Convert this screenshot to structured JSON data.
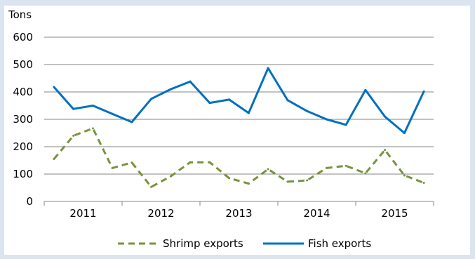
{
  "chart_data": {
    "type": "line",
    "unit_label": "Tons",
    "ylim": [
      0,
      600
    ],
    "y_ticks": [
      0,
      100,
      200,
      300,
      400,
      500,
      600
    ],
    "year_labels": [
      "2011",
      "2012",
      "2013",
      "2014",
      "2015"
    ],
    "points_per_year": 4,
    "grid": true,
    "legend_position": "bottom",
    "series": [
      {
        "name": "Shrimp exports",
        "style": "dashed",
        "color": "#77933c",
        "values": [
          155,
          240,
          267,
          122,
          142,
          53,
          92,
          143,
          143,
          85,
          65,
          118,
          72,
          77,
          122,
          130,
          103,
          188,
          95,
          68
        ]
      },
      {
        "name": "Fish exports",
        "style": "solid",
        "color": "#0070c0",
        "values": [
          418,
          338,
          350,
          320,
          290,
          375,
          410,
          438,
          360,
          372,
          323,
          487,
          370,
          330,
          300,
          280,
          407,
          310,
          250,
          402
        ]
      }
    ]
  }
}
